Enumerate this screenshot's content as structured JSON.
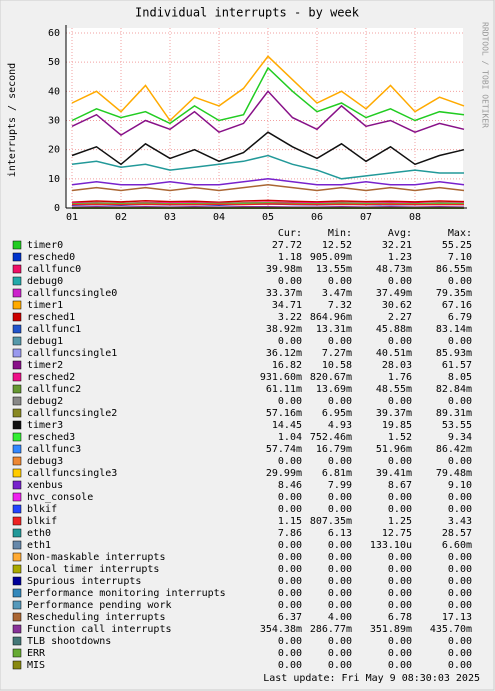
{
  "chart_data": {
    "type": "line",
    "title": "Individual interrupts - by week",
    "y_label": "interrupts / second",
    "side_label": "RRDTOOL / TOBI OETIKER",
    "last_update": "Last update:  Fri May  9 08:30:03 2025",
    "legend_headers": [
      "Cur:",
      "Min:",
      "Avg:",
      "Max:"
    ],
    "categories": [
      "01",
      null,
      "02",
      null,
      "03",
      null,
      "04",
      null,
      "05",
      null,
      "06",
      null,
      "07",
      null,
      "08",
      null,
      null
    ],
    "ylim": [
      0,
      60
    ],
    "yticks": [
      0,
      10,
      20,
      30,
      40,
      50,
      60
    ],
    "grid": true,
    "series": [
      {
        "name": "timer0",
        "color": "#22cc22",
        "values": [
          30,
          34,
          31,
          33,
          29,
          35,
          30,
          32,
          48,
          40,
          33,
          36,
          31,
          34,
          30,
          33,
          32
        ],
        "stats": [
          "27.72",
          "12.52",
          "32.21",
          "55.25"
        ]
      },
      {
        "name": "resched0",
        "color": "#0033cc",
        "values": [
          1,
          1.2,
          1,
          1.3,
          1.1,
          1.2,
          1,
          1.3,
          1.4,
          1.2,
          1.1,
          1.3,
          1.2,
          1.1,
          1.2,
          1.3,
          1.2
        ],
        "stats": [
          "1.18",
          "905.09m",
          "1.23",
          "7.10"
        ]
      },
      {
        "name": "callfunc0",
        "color": "#ee1166",
        "values": [
          0,
          0,
          0,
          0,
          0,
          0,
          0,
          0,
          0,
          0,
          0,
          0,
          0,
          0,
          0,
          0,
          0
        ],
        "stats": [
          "39.98m",
          "13.55m",
          "48.73m",
          "86.55m"
        ]
      },
      {
        "name": "debug0",
        "color": "#22aaaa",
        "values": [
          0,
          0,
          0,
          0,
          0,
          0,
          0,
          0,
          0,
          0,
          0,
          0,
          0,
          0,
          0,
          0,
          0
        ],
        "stats": [
          "0.00",
          "0.00",
          "0.00",
          "0.00"
        ]
      },
      {
        "name": "callfuncsingle0",
        "color": "#cc22cc",
        "values": [
          0,
          0,
          0,
          0,
          0,
          0,
          0,
          0,
          0,
          0,
          0,
          0,
          0,
          0,
          0,
          0,
          0
        ],
        "stats": [
          "33.37m",
          "3.47m",
          "37.49m",
          "79.35m"
        ]
      },
      {
        "name": "timer1",
        "color": "#ffaa00",
        "values": [
          36,
          40,
          33,
          42,
          30,
          38,
          35,
          41,
          52,
          44,
          36,
          40,
          34,
          42,
          33,
          38,
          35
        ],
        "stats": [
          "34.71",
          "7.32",
          "30.62",
          "67.16"
        ]
      },
      {
        "name": "resched1",
        "color": "#cc0000",
        "values": [
          2,
          2.4,
          2.1,
          2.5,
          2.2,
          2.3,
          2,
          2.4,
          2.6,
          2.3,
          2.1,
          2.4,
          2.2,
          2.3,
          2.1,
          2.4,
          2.2
        ],
        "stats": [
          "3.22",
          "864.96m",
          "2.27",
          "6.79"
        ]
      },
      {
        "name": "callfunc1",
        "color": "#2255cc",
        "values": [
          0,
          0,
          0,
          0,
          0,
          0,
          0,
          0,
          0,
          0,
          0,
          0,
          0,
          0,
          0,
          0,
          0
        ],
        "stats": [
          "38.92m",
          "13.31m",
          "45.88m",
          "83.14m"
        ]
      },
      {
        "name": "debug1",
        "color": "#5599aa",
        "values": [
          0,
          0,
          0,
          0,
          0,
          0,
          0,
          0,
          0,
          0,
          0,
          0,
          0,
          0,
          0,
          0,
          0
        ],
        "stats": [
          "0.00",
          "0.00",
          "0.00",
          "0.00"
        ]
      },
      {
        "name": "callfuncsingle1",
        "color": "#9999ee",
        "values": [
          0,
          0,
          0,
          0,
          0,
          0,
          0,
          0,
          0,
          0,
          0,
          0,
          0,
          0,
          0,
          0,
          0
        ],
        "stats": [
          "36.12m",
          "7.27m",
          "40.51m",
          "85.93m"
        ]
      },
      {
        "name": "timer2",
        "color": "#881188",
        "values": [
          28,
          32,
          25,
          30,
          27,
          33,
          26,
          29,
          40,
          31,
          27,
          35,
          28,
          30,
          26,
          29,
          27
        ],
        "stats": [
          "16.82",
          "10.58",
          "28.03",
          "61.57"
        ]
      },
      {
        "name": "resched2",
        "color": "#ee1188",
        "values": [
          1.7,
          1.8,
          1.6,
          1.9,
          1.7,
          1.8,
          1.6,
          1.8,
          2,
          1.8,
          1.7,
          1.8,
          1.7,
          1.8,
          1.6,
          1.8,
          1.7
        ],
        "stats": [
          "931.60m",
          "820.67m",
          "1.76",
          "8.05"
        ]
      },
      {
        "name": "callfunc2",
        "color": "#669933",
        "values": [
          0,
          0,
          0,
          0,
          0,
          0,
          0,
          0,
          0,
          0,
          0,
          0,
          0,
          0,
          0,
          0,
          0
        ],
        "stats": [
          "61.11m",
          "13.69m",
          "48.55m",
          "82.84m"
        ]
      },
      {
        "name": "debug2",
        "color": "#888888",
        "values": [
          0,
          0,
          0,
          0,
          0,
          0,
          0,
          0,
          0,
          0,
          0,
          0,
          0,
          0,
          0,
          0,
          0
        ],
        "stats": [
          "0.00",
          "0.00",
          "0.00",
          "0.00"
        ]
      },
      {
        "name": "callfuncsingle2",
        "color": "#888822",
        "values": [
          0,
          0,
          0,
          0,
          0,
          0,
          0,
          0,
          0,
          0,
          0,
          0,
          0,
          0,
          0,
          0,
          0
        ],
        "stats": [
          "57.16m",
          "6.95m",
          "39.37m",
          "89.31m"
        ]
      },
      {
        "name": "timer3",
        "color": "#111111",
        "values": [
          18,
          21,
          15,
          22,
          17,
          20,
          16,
          19,
          26,
          21,
          17,
          22,
          16,
          21,
          15,
          18,
          20
        ],
        "stats": [
          "14.45",
          "4.93",
          "19.85",
          "53.55"
        ]
      },
      {
        "name": "resched3",
        "color": "#33ee33",
        "values": [
          1.4,
          1.6,
          1.5,
          1.6,
          1.4,
          1.5,
          1.5,
          1.6,
          1.7,
          1.5,
          1.4,
          1.6,
          1.5,
          1.5,
          1.4,
          1.6,
          1.5
        ],
        "stats": [
          "1.04",
          "752.46m",
          "1.52",
          "9.34"
        ]
      },
      {
        "name": "callfunc3",
        "color": "#3388ff",
        "values": [
          0,
          0,
          0,
          0,
          0,
          0,
          0,
          0,
          0,
          0,
          0,
          0,
          0,
          0,
          0,
          0,
          0
        ],
        "stats": [
          "57.74m",
          "16.79m",
          "51.96m",
          "86.42m"
        ]
      },
      {
        "name": "debug3",
        "color": "#ee8833",
        "values": [
          0,
          0,
          0,
          0,
          0,
          0,
          0,
          0,
          0,
          0,
          0,
          0,
          0,
          0,
          0,
          0,
          0
        ],
        "stats": [
          "0.00",
          "0.00",
          "0.00",
          "0.00"
        ]
      },
      {
        "name": "callfuncsingle3",
        "color": "#ffcc00",
        "values": [
          0,
          0,
          0,
          0,
          0,
          0,
          0,
          0,
          0,
          0,
          0,
          0,
          0,
          0,
          0,
          0,
          0
        ],
        "stats": [
          "29.99m",
          "6.81m",
          "39.41m",
          "79.48m"
        ]
      },
      {
        "name": "xenbus",
        "color": "#7722cc",
        "values": [
          8,
          9,
          8,
          8,
          9,
          8,
          8,
          9,
          10,
          9,
          8,
          8,
          9,
          8,
          8,
          9,
          8
        ],
        "stats": [
          "8.46",
          "7.99",
          "8.67",
          "9.10"
        ]
      },
      {
        "name": "hvc_console",
        "color": "#ee22ee",
        "values": [
          0,
          0,
          0,
          0,
          0,
          0,
          0,
          0,
          0,
          0,
          0,
          0,
          0,
          0,
          0,
          0,
          0
        ],
        "stats": [
          "0.00",
          "0.00",
          "0.00",
          "0.00"
        ]
      },
      {
        "name": "blkif",
        "color": "#2244ff",
        "values": [
          0,
          0,
          0,
          0,
          0,
          0,
          0,
          0,
          0,
          0,
          0,
          0,
          0,
          0,
          0,
          0,
          0
        ],
        "stats": [
          "0.00",
          "0.00",
          "0.00",
          "0.00"
        ]
      },
      {
        "name": "blkif",
        "color": "#ee2222",
        "values": [
          1.2,
          1.3,
          1.2,
          1.3,
          1.2,
          1.2,
          1.3,
          1.2,
          1.4,
          1.3,
          1.2,
          1.3,
          1.2,
          1.3,
          1.2,
          1.2,
          1.2
        ],
        "stats": [
          "1.15",
          "807.35m",
          "1.25",
          "3.43"
        ]
      },
      {
        "name": "eth0",
        "color": "#229999",
        "values": [
          15,
          16,
          14,
          15,
          13,
          14,
          15,
          16,
          18,
          15,
          13,
          10,
          11,
          12,
          13,
          12,
          12
        ],
        "stats": [
          "7.86",
          "6.13",
          "12.75",
          "28.57"
        ]
      },
      {
        "name": "eth1",
        "color": "#6688aa",
        "values": [
          0,
          0,
          0,
          0,
          0,
          0,
          0,
          0,
          0,
          0,
          0,
          0,
          0,
          0,
          0,
          0,
          0
        ],
        "stats": [
          "0.00",
          "0.00",
          "133.10u",
          "6.60m"
        ]
      },
      {
        "name": "Non-maskable interrupts",
        "color": "#ffaa33",
        "values": [
          0,
          0,
          0,
          0,
          0,
          0,
          0,
          0,
          0,
          0,
          0,
          0,
          0,
          0,
          0,
          0,
          0
        ],
        "stats": [
          "0.00",
          "0.00",
          "0.00",
          "0.00"
        ]
      },
      {
        "name": "Local timer interrupts",
        "color": "#aaaa00",
        "values": [
          0,
          0,
          0,
          0,
          0,
          0,
          0,
          0,
          0,
          0,
          0,
          0,
          0,
          0,
          0,
          0,
          0
        ],
        "stats": [
          "0.00",
          "0.00",
          "0.00",
          "0.00"
        ]
      },
      {
        "name": "Spurious interrupts",
        "color": "#000099",
        "values": [
          0,
          0,
          0,
          0,
          0,
          0,
          0,
          0,
          0,
          0,
          0,
          0,
          0,
          0,
          0,
          0,
          0
        ],
        "stats": [
          "0.00",
          "0.00",
          "0.00",
          "0.00"
        ]
      },
      {
        "name": "Performance monitoring interrupts",
        "color": "#3388bb",
        "values": [
          0,
          0,
          0,
          0,
          0,
          0,
          0,
          0,
          0,
          0,
          0,
          0,
          0,
          0,
          0,
          0,
          0
        ],
        "stats": [
          "0.00",
          "0.00",
          "0.00",
          "0.00"
        ]
      },
      {
        "name": "Performance pending work",
        "color": "#5599bb",
        "values": [
          0,
          0,
          0,
          0,
          0,
          0,
          0,
          0,
          0,
          0,
          0,
          0,
          0,
          0,
          0,
          0,
          0
        ],
        "stats": [
          "0.00",
          "0.00",
          "0.00",
          "0.00"
        ]
      },
      {
        "name": "Rescheduling interrupts",
        "color": "#aa6633",
        "values": [
          6,
          7,
          6,
          7,
          6,
          7,
          6,
          7,
          8,
          7,
          6,
          7,
          6,
          7,
          6,
          7,
          6
        ],
        "stats": [
          "6.37",
          "4.00",
          "6.78",
          "17.13"
        ]
      },
      {
        "name": "Function call interrupts",
        "color": "#883399",
        "values": [
          0.3,
          0.4,
          0.3,
          0.4,
          0.3,
          0.4,
          0.3,
          0.4,
          0.4,
          0.3,
          0.3,
          0.4,
          0.3,
          0.4,
          0.3,
          0.4,
          0.3
        ],
        "stats": [
          "354.38m",
          "286.77m",
          "351.89m",
          "435.70m"
        ]
      },
      {
        "name": "TLB shootdowns",
        "color": "#447777",
        "values": [
          0,
          0,
          0,
          0,
          0,
          0,
          0,
          0,
          0,
          0,
          0,
          0,
          0,
          0,
          0,
          0,
          0
        ],
        "stats": [
          "0.00",
          "0.00",
          "0.00",
          "0.00"
        ]
      },
      {
        "name": "ERR",
        "color": "#66aa33",
        "values": [
          0,
          0,
          0,
          0,
          0,
          0,
          0,
          0,
          0,
          0,
          0,
          0,
          0,
          0,
          0,
          0,
          0
        ],
        "stats": [
          "0.00",
          "0.00",
          "0.00",
          "0.00"
        ]
      },
      {
        "name": "MIS",
        "color": "#888811",
        "values": [
          0,
          0,
          0,
          0,
          0,
          0,
          0,
          0,
          0,
          0,
          0,
          0,
          0,
          0,
          0,
          0,
          0
        ],
        "stats": [
          "0.00",
          "0.00",
          "0.00",
          "0.00"
        ]
      }
    ]
  }
}
